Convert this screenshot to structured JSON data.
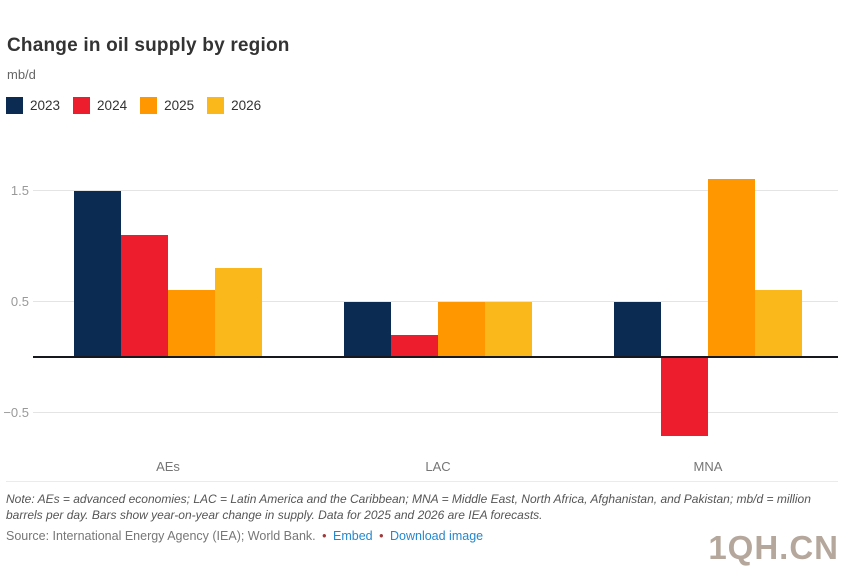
{
  "chart_data": {
    "type": "bar",
    "title": "Change in oil supply by region",
    "ylabel": "mb/d",
    "xlabel": "",
    "categories": [
      "AEs",
      "LAC",
      "MNA"
    ],
    "series": [
      {
        "name": "2023",
        "color": "#0c2b52",
        "values": [
          1.5,
          0.5,
          0.5
        ]
      },
      {
        "name": "2024",
        "color": "#ed1d2e",
        "values": [
          1.1,
          0.2,
          -0.7
        ]
      },
      {
        "name": "2025",
        "color": "#ff9800",
        "values": [
          0.6,
          0.5,
          1.6
        ]
      },
      {
        "name": "2026",
        "color": "#fbb81a",
        "values": [
          0.8,
          0.5,
          0.6
        ]
      }
    ],
    "yticks": [
      {
        "value": 1.5,
        "label": "1.5"
      },
      {
        "value": 0.5,
        "label": "0.5"
      },
      {
        "value": -0.5,
        "label": "−0.5"
      }
    ],
    "ylim": [
      -0.75,
      1.75
    ],
    "grid": true,
    "legend_position": "top-left"
  },
  "footer": {
    "note": "Note: AEs = advanced economies; LAC = Latin America and the Caribbean; MNA = Middle East, North Africa, Afghanistan, and Pakistan; mb/d = million barrels per day. Bars show year-on-year change in supply. Data for 2025 and 2026 are IEA forecasts.",
    "source": "Source: International Energy Agency (IEA); World Bank.",
    "separator": "•",
    "links": [
      {
        "label": "Embed"
      },
      {
        "label": "Download image"
      }
    ],
    "watermark": "1QH.CN"
  }
}
